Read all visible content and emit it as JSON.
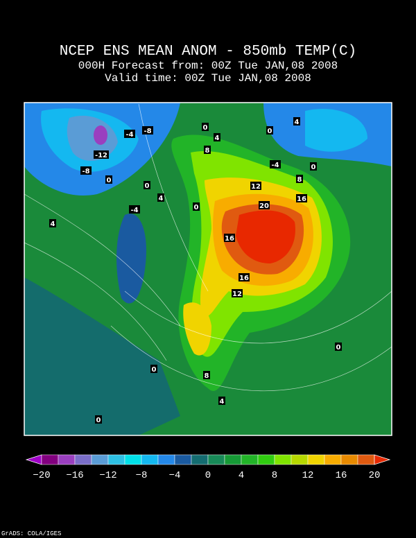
{
  "header": {
    "title": "NCEP ENS MEAN ANOM - 850mb TEMP(C)",
    "lines": [
      "000H Forecast from: 00Z Tue JAN,08 2008",
      "Valid time: 00Z Tue JAN,08 2008"
    ]
  },
  "map": {
    "contour_labels": [
      "-12",
      "-4",
      "-8",
      "-8",
      "0",
      "0",
      "4",
      "0",
      "4",
      "8",
      "-4",
      "0",
      "8",
      "12",
      "0",
      "4",
      "-4",
      "0",
      "20",
      "16",
      "4",
      "16",
      "16",
      "12",
      "0",
      "0",
      "8",
      "4",
      "0"
    ]
  },
  "colorbar": {
    "colors": [
      "#a000c8",
      "#82007f",
      "#9a3fbf",
      "#7a6ec8",
      "#5a9cd6",
      "#2ec0e4",
      "#00e0e8",
      "#14b8f0",
      "#2488e8",
      "#1a5aa0",
      "#146c70",
      "#188a58",
      "#169a36",
      "#22b428",
      "#30cc10",
      "#80e400",
      "#b6d800",
      "#f0d400",
      "#f8ac00",
      "#e88a00",
      "#e05a10",
      "#e82800"
    ],
    "labels": [
      "−20",
      "−16",
      "−12",
      "−8",
      "−4",
      "0",
      "4",
      "8",
      "12",
      "16",
      "20"
    ]
  },
  "credit": "GrADS: COLA/IGES"
}
